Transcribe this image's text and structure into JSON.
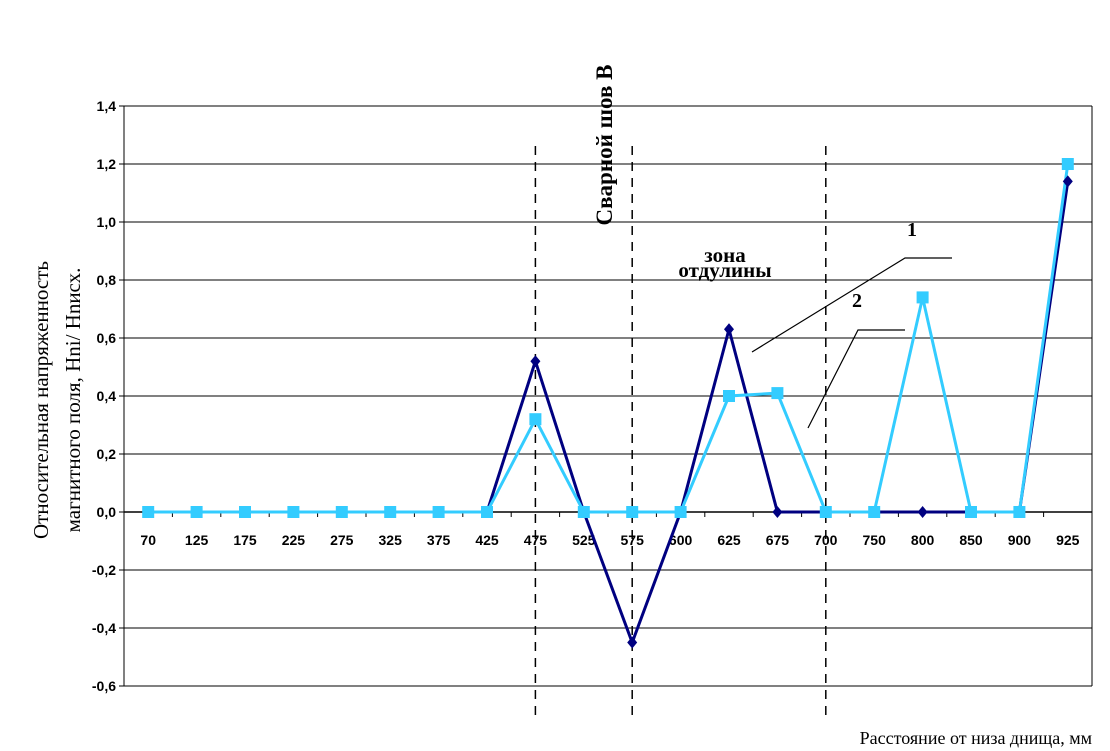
{
  "chart_data": {
    "type": "line",
    "categories": [
      "70",
      "125",
      "175",
      "225",
      "275",
      "325",
      "375",
      "425",
      "475",
      "525",
      "575",
      "600",
      "625",
      "675",
      "700",
      "750",
      "800",
      "850",
      "900",
      "925"
    ],
    "series": [
      {
        "name": "1",
        "color": "#000080",
        "marker": "diamond",
        "values": [
          0,
          0,
          0,
          0,
          0,
          0,
          0,
          0,
          0.52,
          0,
          -0.45,
          0,
          0.63,
          0,
          0,
          0,
          0,
          0,
          0,
          1.14
        ]
      },
      {
        "name": "2",
        "color": "#33CCFF",
        "marker": "square",
        "values": [
          0,
          0,
          0,
          0,
          0,
          0,
          0,
          0,
          0.32,
          0,
          0,
          0,
          0.4,
          0.41,
          0,
          0,
          0.74,
          0,
          0,
          1.2
        ]
      }
    ],
    "yticks": [
      "1,4",
      "1,2",
      "1,0",
      "0,8",
      "0,6",
      "0,4",
      "0,2",
      "0,0",
      "-0,2",
      "-0,4",
      "-0,6"
    ],
    "ylim": [
      -0.6,
      1.4
    ],
    "ylabel_lines": [
      "Относительная напряженность",
      "магнитного поля, Hni/ Hnисх."
    ],
    "xlabel": "Расстояние от низа днища, мм",
    "grid": true,
    "annotations": {
      "weld": "Сварной шов В",
      "zone_line1": "зона",
      "zone_line2": "отдулины",
      "series1_label": "1",
      "series2_label": "2"
    }
  }
}
